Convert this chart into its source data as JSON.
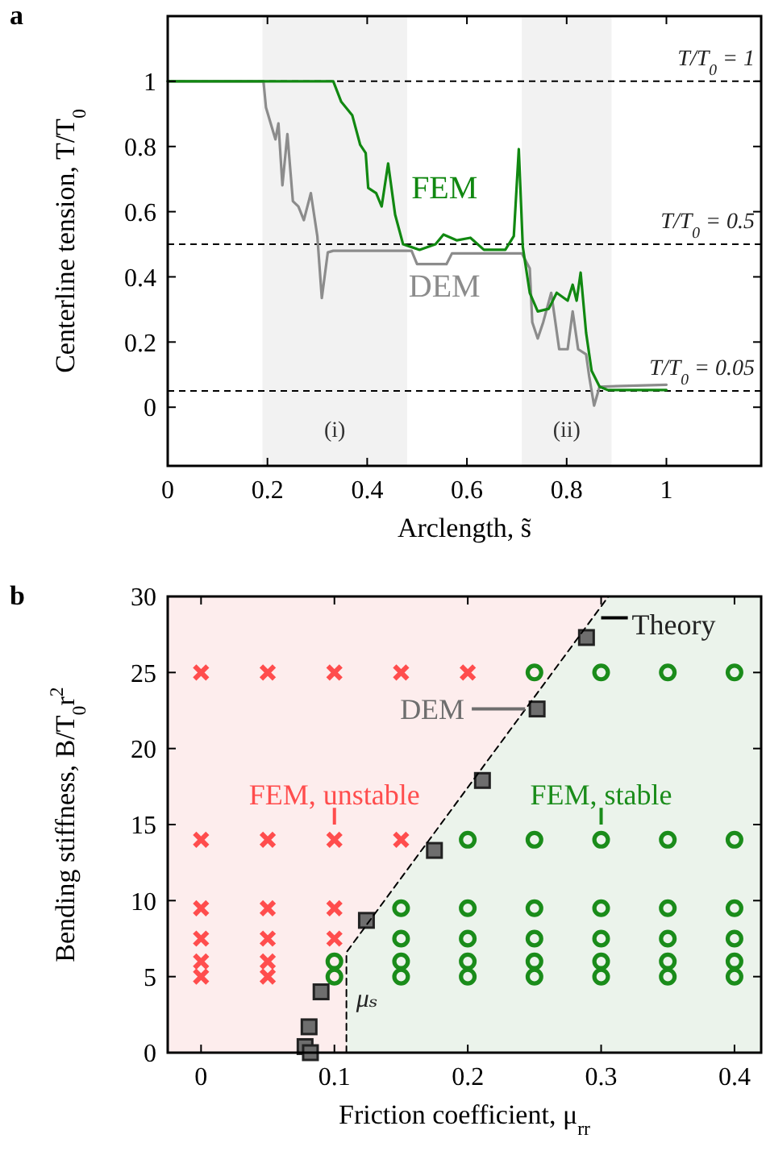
{
  "chart_data": [
    {
      "type": "line",
      "title": "a",
      "xlabel": "Arclength, s̃",
      "ylabel": "Centerline tension, T/T$_{0}$",
      "xlim": [
        0,
        1.19
      ],
      "ylim": [
        -0.18,
        1.2
      ],
      "xticks": [
        0,
        0.2,
        0.4,
        0.6,
        0.8,
        1
      ],
      "yticks": [
        0,
        0.2,
        0.4,
        0.6,
        0.8,
        1
      ],
      "grid": false,
      "ref_lines": [
        {
          "axis": "y",
          "value": 1,
          "label": "T/T$_{0}$ = 1",
          "color": "#000000",
          "line_style": "dashed"
        },
        {
          "axis": "y",
          "value": 0.5,
          "label": "T/T$_{0}$ = 0.5",
          "color": "#000000",
          "line_style": "dashed"
        },
        {
          "axis": "y",
          "value": 0.05,
          "label": "T/T$_{0}$ = 0.05",
          "color": "#000000",
          "line_style": "dashed"
        }
      ],
      "bands": [
        {
          "axis": "x",
          "from": 0.19,
          "to": 0.48,
          "label": "(i)",
          "color": "#f2f2f2"
        },
        {
          "axis": "x",
          "from": 0.71,
          "to": 0.89,
          "label": "(ii)",
          "color": "#f2f2f2"
        }
      ],
      "series": [
        {
          "name": "DEM",
          "color": "#8c8c8c",
          "x": [
            0,
            0.192,
            0.197,
            0.208,
            0.216,
            0.222,
            0.23,
            0.24,
            0.251,
            0.262,
            0.273,
            0.287,
            0.3,
            0.309,
            0.321,
            0.332,
            0.489,
            0.5,
            0.559,
            0.57,
            0.71,
            0.726,
            0.731,
            0.742,
            0.753,
            0.769,
            0.785,
            0.802,
            0.812,
            0.823,
            0.839,
            0.845,
            0.855,
            0.866,
            1
          ],
          "values": [
            1,
            1,
            0.92,
            0.863,
            0.822,
            0.871,
            0.681,
            0.838,
            0.632,
            0.616,
            0.574,
            0.657,
            0.525,
            0.335,
            0.475,
            0.48,
            0.48,
            0.439,
            0.439,
            0.472,
            0.472,
            0.426,
            0.261,
            0.211,
            0.261,
            0.351,
            0.178,
            0.178,
            0.294,
            0.178,
            0.162,
            0.096,
            0.005,
            0.063,
            0.069
          ]
        },
        {
          "name": "FEM",
          "color": "#118811",
          "x": [
            0,
            0.332,
            0.348,
            0.37,
            0.386,
            0.397,
            0.402,
            0.418,
            0.429,
            0.442,
            0.456,
            0.472,
            0.505,
            0.537,
            0.553,
            0.58,
            0.607,
            0.634,
            0.677,
            0.694,
            0.704,
            0.712,
            0.726,
            0.742,
            0.764,
            0.78,
            0.802,
            0.812,
            0.82,
            0.828,
            0.839,
            0.85,
            0.866,
            0.882,
            1
          ],
          "values": [
            1,
            1,
            0.937,
            0.896,
            0.805,
            0.78,
            0.673,
            0.657,
            0.616,
            0.748,
            0.591,
            0.5,
            0.483,
            0.5,
            0.53,
            0.512,
            0.52,
            0.483,
            0.483,
            0.525,
            0.792,
            0.492,
            0.351,
            0.294,
            0.302,
            0.351,
            0.327,
            0.376,
            0.327,
            0.413,
            0.228,
            0.112,
            0.063,
            0.053,
            0.053
          ]
        }
      ]
    },
    {
      "type": "scatter",
      "title": "b",
      "xlabel": "Friction coefficient, μ$_{rr}$",
      "ylabel": "Bending stiffness, B/T$_{0}$r$^{2}$",
      "xlim": [
        -0.025,
        0.42
      ],
      "ylim": [
        0,
        30
      ],
      "xticks": [
        0,
        0.1,
        0.2,
        0.3,
        0.4
      ],
      "yticks": [
        0,
        5,
        10,
        15,
        20,
        25,
        30
      ],
      "grid": false,
      "legend": "top right",
      "annotations": [
        {
          "text": "μₛ",
          "x": 0.109,
          "y": 3
        }
      ],
      "series": [
        {
          "name": "FEM, unstable",
          "color": "#ff4d4d",
          "marker": "cross",
          "x": [
            0,
            0.05,
            0.1,
            0.15,
            0.2,
            0,
            0.05,
            0.1,
            0.15,
            0,
            0.05,
            0.1,
            0,
            0.05,
            0.1,
            0,
            0.05,
            0,
            0.05
          ],
          "values": [
            25,
            25,
            25,
            25,
            25,
            14,
            14,
            14,
            14,
            9.5,
            9.5,
            9.5,
            7.5,
            7.5,
            7.5,
            6,
            6,
            5,
            5
          ]
        },
        {
          "name": "FEM, stable",
          "color": "#1a8c1a",
          "marker": "circle",
          "x": [
            0.25,
            0.3,
            0.35,
            0.4,
            0.2,
            0.25,
            0.3,
            0.35,
            0.4,
            0.15,
            0.2,
            0.25,
            0.3,
            0.35,
            0.4,
            0.15,
            0.2,
            0.25,
            0.3,
            0.35,
            0.4,
            0.1,
            0.15,
            0.2,
            0.25,
            0.3,
            0.35,
            0.4,
            0.1,
            0.15,
            0.2,
            0.25,
            0.3,
            0.35,
            0.4
          ],
          "values": [
            25,
            25,
            25,
            25,
            14,
            14,
            14,
            14,
            14,
            9.5,
            9.5,
            9.5,
            9.5,
            9.5,
            9.5,
            7.5,
            7.5,
            7.5,
            7.5,
            7.5,
            7.5,
            6,
            6,
            6,
            6,
            6,
            6,
            6,
            5,
            5,
            5,
            5,
            5,
            5,
            5
          ]
        },
        {
          "name": "DEM",
          "color": "#6e6e6e",
          "marker": "square",
          "x": [
            0.289,
            0.252,
            0.211,
            0.175,
            0.124,
            0.09,
            0.081,
            0.078,
            0.082
          ],
          "values": [
            27.3,
            22.6,
            17.9,
            13.3,
            8.7,
            4.0,
            1.7,
            0.4,
            0
          ]
        },
        {
          "name": "Theory",
          "type": "line",
          "color": "#000000",
          "line_style": "dashed",
          "marker": "none",
          "x": [
            0.109,
            0.109,
            0.3055
          ],
          "values": [
            0,
            6.6,
            30
          ]
        }
      ]
    }
  ]
}
